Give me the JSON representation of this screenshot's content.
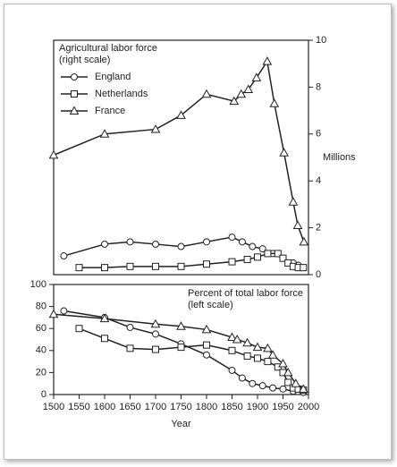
{
  "chart_data": [
    {
      "type": "line",
      "annotation": [
        "Agricultural labor force",
        "(right scale)"
      ],
      "ylabel": "Millions",
      "xlim": [
        1500,
        2000
      ],
      "ylim": [
        0,
        10
      ],
      "yticks": [
        0,
        2,
        4,
        6,
        8,
        10
      ],
      "series": [
        {
          "name": "England",
          "color": "#222222",
          "marker": "circle",
          "x": [
            1520,
            1600,
            1650,
            1700,
            1750,
            1800,
            1850,
            1870,
            1890,
            1910,
            1930,
            1950,
            1970,
            1980
          ],
          "values": [
            0.8,
            1.3,
            1.4,
            1.3,
            1.2,
            1.4,
            1.6,
            1.4,
            1.2,
            1.1,
            0.9,
            0.7,
            0.5,
            0.4
          ]
        },
        {
          "name": "Netherlands",
          "color": "#222222",
          "marker": "square",
          "x": [
            1550,
            1600,
            1650,
            1700,
            1750,
            1800,
            1850,
            1880,
            1900,
            1920,
            1940,
            1950,
            1960,
            1970,
            1980,
            1990
          ],
          "values": [
            0.3,
            0.3,
            0.35,
            0.35,
            0.35,
            0.45,
            0.55,
            0.65,
            0.75,
            0.9,
            0.9,
            0.7,
            0.5,
            0.35,
            0.3,
            0.3
          ]
        },
        {
          "name": "France",
          "color": "#222222",
          "marker": "triangle",
          "x": [
            1500,
            1600,
            1700,
            1750,
            1800,
            1854,
            1868,
            1882,
            1898,
            1919,
            1933,
            1952,
            1970,
            1979,
            1991
          ],
          "values": [
            5.1,
            6.0,
            6.2,
            6.8,
            7.7,
            7.4,
            7.7,
            7.9,
            8.4,
            9.1,
            7.3,
            5.2,
            3.1,
            2.1,
            1.4
          ]
        }
      ]
    },
    {
      "type": "line",
      "annotation": [
        "Percent of total labor force",
        "(left scale)"
      ],
      "xlabel": "Year",
      "xlim": [
        1500,
        2000
      ],
      "xticks": [
        1500,
        1550,
        1600,
        1650,
        1700,
        1750,
        1800,
        1850,
        1900,
        1950,
        2000
      ],
      "ylim": [
        0,
        100
      ],
      "yticks": [
        0,
        20,
        40,
        60,
        80,
        100
      ],
      "series": [
        {
          "color": "#222222",
          "marker": "circle",
          "x": [
            1520,
            1600,
            1650,
            1700,
            1750,
            1800,
            1850,
            1870,
            1890,
            1910,
            1930,
            1950,
            1970,
            1990
          ],
          "values": [
            76,
            70,
            61,
            55,
            46,
            36,
            22,
            15,
            10,
            8,
            6,
            5,
            3,
            2
          ]
        },
        {
          "color": "#222222",
          "marker": "square",
          "x": [
            1550,
            1600,
            1650,
            1700,
            1750,
            1800,
            1850,
            1880,
            1900,
            1920,
            1940,
            1950,
            1960,
            1970,
            1980,
            1990
          ],
          "values": [
            60,
            51,
            42,
            41,
            43,
            45,
            40,
            35,
            33,
            30,
            25,
            20,
            11,
            6,
            5,
            4
          ]
        },
        {
          "color": "#222222",
          "marker": "triangle",
          "x": [
            1500,
            1600,
            1700,
            1750,
            1800,
            1850,
            1860,
            1880,
            1900,
            1920,
            1930,
            1950,
            1960,
            1975,
            1990
          ],
          "values": [
            73,
            69,
            64,
            62,
            59,
            52,
            50,
            47,
            43,
            42,
            36,
            28,
            20,
            10,
            5
          ]
        }
      ]
    }
  ]
}
